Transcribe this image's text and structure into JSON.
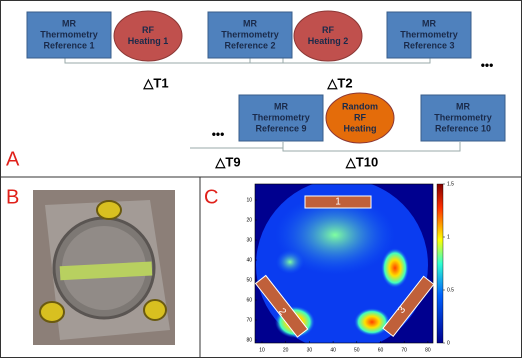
{
  "panel_a": {
    "label": "A",
    "nodes": [
      {
        "shape": "box",
        "lines": [
          "MR",
          "Thermometry",
          "Reference 1"
        ]
      },
      {
        "shape": "ellipse",
        "lines": [
          "RF",
          "Heating 1"
        ]
      },
      {
        "shape": "box",
        "lines": [
          "MR",
          "Thermometry",
          "Reference 2"
        ]
      },
      {
        "shape": "ellipse",
        "lines": [
          "RF",
          "Heating 2"
        ]
      },
      {
        "shape": "box",
        "lines": [
          "MR",
          "Thermometry",
          "Reference 3"
        ]
      },
      {
        "shape": "box",
        "lines": [
          "MR",
          "Thermometry",
          "Reference 9"
        ]
      },
      {
        "shape": "ellipse",
        "lines": [
          "Random",
          "RF",
          "Heating"
        ]
      },
      {
        "shape": "box",
        "lines": [
          "MR",
          "Thermometry",
          "Reference 10"
        ]
      }
    ],
    "intervals": [
      "△T1",
      "△T2",
      "△T9",
      "△T10"
    ],
    "ellipsis": [
      "•••",
      "•••"
    ]
  },
  "panel_b": {
    "label": "B"
  },
  "panel_c": {
    "label": "C",
    "xticks": [
      10,
      20,
      30,
      40,
      50,
      60,
      70,
      80
    ],
    "yticks": [
      10,
      20,
      30,
      40,
      50,
      60,
      70,
      80
    ],
    "colorbar_ticks": [
      0,
      0.5,
      1,
      1.5
    ],
    "regions": [
      "1",
      "2",
      "3"
    ]
  }
}
